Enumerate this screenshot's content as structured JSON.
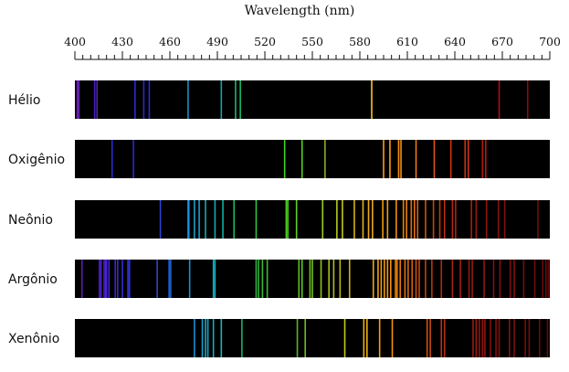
{
  "chart_data": {
    "type": "spectrum",
    "title": "",
    "xlabel": "Wavelength (nm)",
    "xlim": [
      400,
      700
    ],
    "major_ticks": [
      400,
      430,
      460,
      490,
      520,
      550,
      580,
      610,
      640,
      670,
      700
    ],
    "minor_tick_step": 5,
    "background_color": "#000000",
    "series": [
      {
        "name": "Hélio",
        "lines": [
          {
            "nm": 401.5,
            "color": "#6a1fbf"
          },
          {
            "nm": 402.5,
            "color": "#6a1fbf"
          },
          {
            "nm": 412.5,
            "color": "#4b22b8"
          },
          {
            "nm": 414.0,
            "color": "#4b22b8"
          },
          {
            "nm": 438.0,
            "color": "#2a2ad0"
          },
          {
            "nm": 443.5,
            "color": "#2a2ad0"
          },
          {
            "nm": 447.0,
            "color": "#2a2ad0"
          },
          {
            "nm": 471.5,
            "color": "#1a8fc8"
          },
          {
            "nm": 492.5,
            "color": "#10a5a0"
          },
          {
            "nm": 501.5,
            "color": "#19b86a"
          },
          {
            "nm": 504.5,
            "color": "#19b86a"
          },
          {
            "nm": 587.5,
            "color": "#ffc21a"
          },
          {
            "nm": 668.0,
            "color": "#b01010"
          },
          {
            "nm": 686.0,
            "color": "#8a0a0a"
          }
        ]
      },
      {
        "name": "Oxigênio",
        "lines": [
          {
            "nm": 423.5,
            "color": "#2a2ad0"
          },
          {
            "nm": 437.0,
            "color": "#2a2ad0"
          },
          {
            "nm": 532.5,
            "color": "#47d020"
          },
          {
            "nm": 543.5,
            "color": "#58d020"
          },
          {
            "nm": 558.0,
            "color": "#8ab020"
          },
          {
            "nm": 595.0,
            "color": "#ff9a10"
          },
          {
            "nm": 599.0,
            "color": "#ff9a10"
          },
          {
            "nm": 604.5,
            "color": "#f29010"
          },
          {
            "nm": 606.0,
            "color": "#f29010"
          },
          {
            "nm": 615.5,
            "color": "#e77a10"
          },
          {
            "nm": 627.0,
            "color": "#e05518"
          },
          {
            "nm": 637.5,
            "color": "#cc3510"
          },
          {
            "nm": 646.5,
            "color": "#cc3510"
          },
          {
            "nm": 648.5,
            "color": "#cc3510"
          },
          {
            "nm": 657.5,
            "color": "#b01a10"
          },
          {
            "nm": 659.5,
            "color": "#b01a10"
          }
        ]
      },
      {
        "name": "Neônio",
        "lines": [
          {
            "nm": 454.0,
            "color": "#2a42d0"
          },
          {
            "nm": 471.5,
            "color": "#1a8fe0"
          },
          {
            "nm": 472.0,
            "color": "#1a8fe0"
          },
          {
            "nm": 475.5,
            "color": "#1a9fc8"
          },
          {
            "nm": 478.5,
            "color": "#1a9fc8"
          },
          {
            "nm": 482.5,
            "color": "#12aab0"
          },
          {
            "nm": 488.5,
            "color": "#12aab0"
          },
          {
            "nm": 493.5,
            "color": "#10b0a0"
          },
          {
            "nm": 500.5,
            "color": "#19b86a"
          },
          {
            "nm": 514.5,
            "color": "#30c040"
          },
          {
            "nm": 533.5,
            "color": "#47d020"
          },
          {
            "nm": 534.5,
            "color": "#47d020"
          },
          {
            "nm": 540.0,
            "color": "#60d020"
          },
          {
            "nm": 556.5,
            "color": "#9ad020"
          },
          {
            "nm": 565.5,
            "color": "#b8c818"
          },
          {
            "nm": 569.0,
            "color": "#c8c818"
          },
          {
            "nm": 576.5,
            "color": "#d8b018"
          },
          {
            "nm": 582.0,
            "color": "#e8b018"
          },
          {
            "nm": 585.5,
            "color": "#f0a818"
          },
          {
            "nm": 588.0,
            "color": "#f0a818"
          },
          {
            "nm": 594.5,
            "color": "#f09a10"
          },
          {
            "nm": 597.5,
            "color": "#f09a10"
          },
          {
            "nm": 603.0,
            "color": "#f09010"
          },
          {
            "nm": 607.5,
            "color": "#e88010"
          },
          {
            "nm": 609.5,
            "color": "#e88010"
          },
          {
            "nm": 612.5,
            "color": "#e07010"
          },
          {
            "nm": 614.5,
            "color": "#e07010"
          },
          {
            "nm": 616.5,
            "color": "#d86010"
          },
          {
            "nm": 621.5,
            "color": "#d05010"
          },
          {
            "nm": 626.5,
            "color": "#c84510"
          },
          {
            "nm": 630.5,
            "color": "#c03a10"
          },
          {
            "nm": 633.5,
            "color": "#b83010"
          },
          {
            "nm": 638.5,
            "color": "#b02a10"
          },
          {
            "nm": 640.5,
            "color": "#a82510"
          },
          {
            "nm": 650.5,
            "color": "#a02010"
          },
          {
            "nm": 653.5,
            "color": "#981a10"
          },
          {
            "nm": 660.0,
            "color": "#901510"
          },
          {
            "nm": 667.5,
            "color": "#881010"
          },
          {
            "nm": 671.5,
            "color": "#801010"
          },
          {
            "nm": 692.5,
            "color": "#700c0c"
          }
        ]
      },
      {
        "name": "Argônio",
        "lines": [
          {
            "nm": 404.5,
            "color": "#5a1fb0"
          },
          {
            "nm": 415.5,
            "color": "#5020c8"
          },
          {
            "nm": 416.5,
            "color": "#5020c8"
          },
          {
            "nm": 418.5,
            "color": "#4a22d0"
          },
          {
            "nm": 419.5,
            "color": "#4a22d0"
          },
          {
            "nm": 420.0,
            "color": "#4a22d0"
          },
          {
            "nm": 421.5,
            "color": "#4025d0"
          },
          {
            "nm": 425.5,
            "color": "#3a28d0"
          },
          {
            "nm": 427.0,
            "color": "#3a28d0"
          },
          {
            "nm": 430.0,
            "color": "#3530d0"
          },
          {
            "nm": 433.5,
            "color": "#3030d0"
          },
          {
            "nm": 434.5,
            "color": "#3030d0"
          },
          {
            "nm": 452.0,
            "color": "#2a48d0"
          },
          {
            "nm": 459.5,
            "color": "#2060d0"
          },
          {
            "nm": 460.5,
            "color": "#2060d0"
          },
          {
            "nm": 472.5,
            "color": "#1a8fd0"
          },
          {
            "nm": 487.5,
            "color": "#12a8b8"
          },
          {
            "nm": 488.5,
            "color": "#12a8b8"
          },
          {
            "nm": 514.5,
            "color": "#30b040"
          },
          {
            "nm": 516.0,
            "color": "#30b040"
          },
          {
            "nm": 518.5,
            "color": "#40b830"
          },
          {
            "nm": 521.5,
            "color": "#40b830"
          },
          {
            "nm": 541.5,
            "color": "#58c020"
          },
          {
            "nm": 543.5,
            "color": "#60c820"
          },
          {
            "nm": 548.5,
            "color": "#70c020"
          },
          {
            "nm": 550.0,
            "color": "#78c020"
          },
          {
            "nm": 555.5,
            "color": "#90c020"
          },
          {
            "nm": 560.5,
            "color": "#a8c018"
          },
          {
            "nm": 563.5,
            "color": "#b0c018"
          },
          {
            "nm": 567.5,
            "color": "#c0b818"
          },
          {
            "nm": 573.5,
            "color": "#d0b018"
          },
          {
            "nm": 588.5,
            "color": "#e8a818"
          },
          {
            "nm": 591.5,
            "color": "#f0a018"
          },
          {
            "nm": 593.5,
            "color": "#f0a018"
          },
          {
            "nm": 595.5,
            "color": "#f09a10"
          },
          {
            "nm": 597.5,
            "color": "#f09a10"
          },
          {
            "nm": 599.5,
            "color": "#f09010"
          },
          {
            "nm": 602.5,
            "color": "#e88010"
          },
          {
            "nm": 603.5,
            "color": "#e88010"
          },
          {
            "nm": 605.5,
            "color": "#e07810"
          },
          {
            "nm": 608.5,
            "color": "#e07010"
          },
          {
            "nm": 610.5,
            "color": "#d86810"
          },
          {
            "nm": 613.0,
            "color": "#d06010"
          },
          {
            "nm": 615.5,
            "color": "#d05010"
          },
          {
            "nm": 617.5,
            "color": "#c84810"
          },
          {
            "nm": 621.5,
            "color": "#c04010"
          },
          {
            "nm": 625.5,
            "color": "#b83510"
          },
          {
            "nm": 631.5,
            "color": "#b02a10"
          },
          {
            "nm": 638.5,
            "color": "#a82510"
          },
          {
            "nm": 643.5,
            "color": "#a02010"
          },
          {
            "nm": 649.0,
            "color": "#981a10"
          },
          {
            "nm": 651.0,
            "color": "#981a10"
          },
          {
            "nm": 658.5,
            "color": "#901510"
          },
          {
            "nm": 664.5,
            "color": "#881010"
          },
          {
            "nm": 668.5,
            "color": "#851010"
          },
          {
            "nm": 675.0,
            "color": "#801010"
          },
          {
            "nm": 677.5,
            "color": "#801010"
          },
          {
            "nm": 683.5,
            "color": "#780c0c"
          },
          {
            "nm": 690.5,
            "color": "#700c0c"
          },
          {
            "nm": 695.5,
            "color": "#6a0a0a"
          },
          {
            "nm": 697.5,
            "color": "#6a0a0a"
          },
          {
            "nm": 699.0,
            "color": "#640a0a"
          }
        ]
      },
      {
        "name": "Xenônio",
        "lines": [
          {
            "nm": 475.5,
            "color": "#1a8fd0"
          },
          {
            "nm": 480.5,
            "color": "#1a9fd0"
          },
          {
            "nm": 482.5,
            "color": "#18a8c8"
          },
          {
            "nm": 484.0,
            "color": "#18a8c8"
          },
          {
            "nm": 487.5,
            "color": "#12b0b8"
          },
          {
            "nm": 492.5,
            "color": "#10b8b0"
          },
          {
            "nm": 505.5,
            "color": "#19b070"
          },
          {
            "nm": 540.5,
            "color": "#50b820"
          },
          {
            "nm": 545.5,
            "color": "#68c020"
          },
          {
            "nm": 570.5,
            "color": "#c8c818"
          },
          {
            "nm": 582.5,
            "color": "#e8b018"
          },
          {
            "nm": 584.5,
            "color": "#e8b018"
          },
          {
            "nm": 592.5,
            "color": "#f0a018"
          },
          {
            "nm": 600.5,
            "color": "#f09010"
          },
          {
            "nm": 622.5,
            "color": "#d05010"
          },
          {
            "nm": 624.5,
            "color": "#c84810"
          },
          {
            "nm": 631.5,
            "color": "#b83510"
          },
          {
            "nm": 633.5,
            "color": "#b03010"
          },
          {
            "nm": 651.5,
            "color": "#981a10"
          },
          {
            "nm": 653.5,
            "color": "#981a10"
          },
          {
            "nm": 655.5,
            "color": "#901510"
          },
          {
            "nm": 657.5,
            "color": "#901510"
          },
          {
            "nm": 659.0,
            "color": "#901510"
          },
          {
            "nm": 662.5,
            "color": "#881010"
          },
          {
            "nm": 666.0,
            "color": "#881010"
          },
          {
            "nm": 668.0,
            "color": "#851010"
          },
          {
            "nm": 674.5,
            "color": "#801010"
          },
          {
            "nm": 677.5,
            "color": "#801010"
          },
          {
            "nm": 684.5,
            "color": "#780c0c"
          },
          {
            "nm": 687.0,
            "color": "#780c0c"
          },
          {
            "nm": 693.5,
            "color": "#6a0a0a"
          },
          {
            "nm": 698.5,
            "color": "#640a0a"
          }
        ]
      }
    ]
  }
}
